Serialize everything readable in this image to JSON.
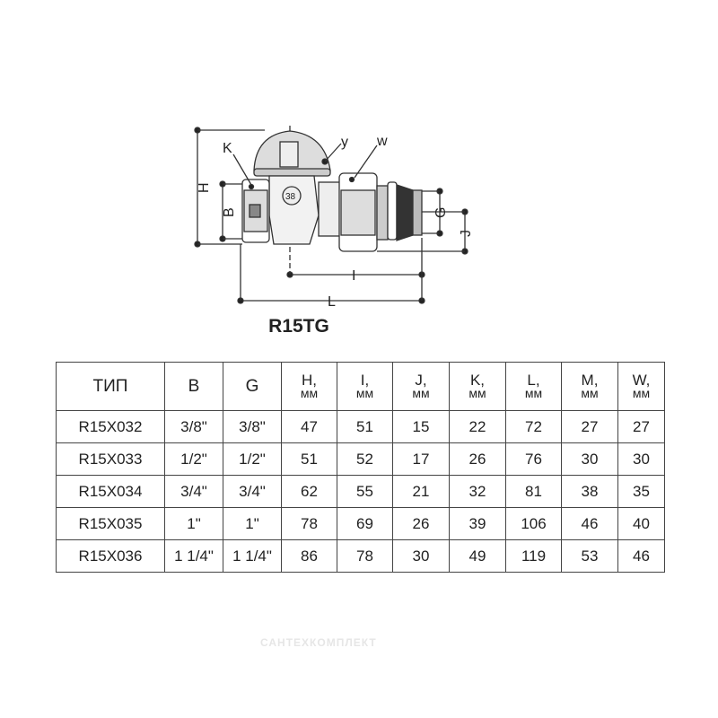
{
  "drawing": {
    "model": "R15TG",
    "labels": {
      "H": "H",
      "B": "B",
      "K": "K",
      "y": "y",
      "w": "w",
      "G": "G",
      "J": "J",
      "I": "I",
      "L": "L",
      "nut_mark": "38"
    }
  },
  "table": {
    "headers": [
      {
        "main": "ТИП",
        "unit": ""
      },
      {
        "main": "B",
        "unit": ""
      },
      {
        "main": "G",
        "unit": ""
      },
      {
        "main": "H,",
        "unit": "мм"
      },
      {
        "main": "I,",
        "unit": "мм"
      },
      {
        "main": "J,",
        "unit": "мм"
      },
      {
        "main": "K,",
        "unit": "мм"
      },
      {
        "main": "L,",
        "unit": "мм"
      },
      {
        "main": "M,",
        "unit": "мм"
      },
      {
        "main": "W,",
        "unit": "мм"
      }
    ],
    "rows": [
      [
        "R15X032",
        "3/8\"",
        "3/8\"",
        "47",
        "51",
        "15",
        "22",
        "72",
        "27",
        "27"
      ],
      [
        "R15X033",
        "1/2\"",
        "1/2\"",
        "51",
        "52",
        "17",
        "26",
        "76",
        "30",
        "30"
      ],
      [
        "R15X034",
        "3/4\"",
        "3/4\"",
        "62",
        "55",
        "21",
        "32",
        "81",
        "38",
        "35"
      ],
      [
        "R15X035",
        "1\"",
        "1\"",
        "78",
        "69",
        "26",
        "39",
        "106",
        "46",
        "40"
      ],
      [
        "R15X036",
        "1 1/4\"",
        "1 1/4\"",
        "86",
        "78",
        "30",
        "49",
        "119",
        "53",
        "46"
      ]
    ]
  },
  "watermark": "САНТЕХКОМПЛЕКТ"
}
